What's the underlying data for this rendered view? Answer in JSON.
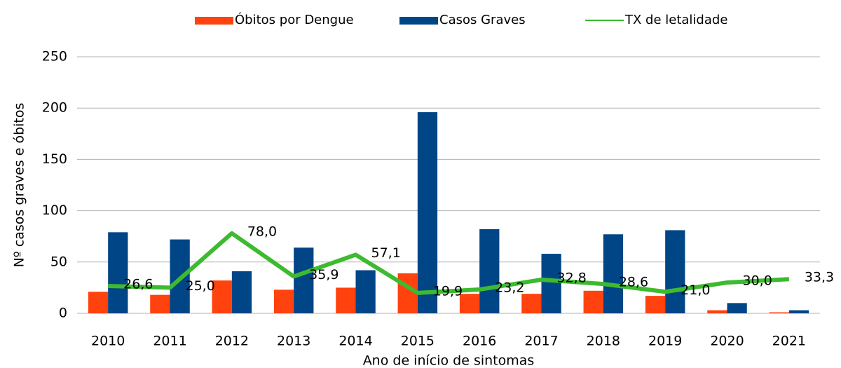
{
  "chart_data": {
    "type": "bar",
    "x_label": "Ano de início de sintomas",
    "y_label": "Nº casos graves e óbitos",
    "categories": [
      "2010",
      "2011",
      "2012",
      "2013",
      "2014",
      "2015",
      "2016",
      "2017",
      "2018",
      "2019",
      "2020",
      "2021"
    ],
    "series": [
      {
        "name": "Óbitos por Dengue",
        "type": "bar",
        "color": "#ff420e",
        "values": [
          21,
          18,
          32,
          23,
          25,
          39,
          19,
          19,
          22,
          17,
          3,
          1
        ]
      },
      {
        "name": "Casos Graves",
        "type": "bar",
        "color": "#004586",
        "values": [
          79,
          72,
          41,
          64,
          42,
          196,
          82,
          58,
          77,
          81,
          10,
          3
        ]
      },
      {
        "name": "TX de letalidade",
        "type": "line",
        "color": "#3dba2f",
        "values": [
          26.6,
          25.0,
          78.0,
          35.9,
          57.1,
          19.9,
          23.2,
          32.8,
          28.6,
          21.0,
          30.0,
          33.3
        ],
        "value_labels": [
          "26,6",
          "25,0",
          "78,0",
          "35,9",
          "57,1",
          "19,9",
          "23,2",
          "32,8",
          "28,6",
          "21,0",
          "30,0",
          "33,3"
        ]
      }
    ],
    "ylim": [
      0,
      250
    ],
    "yticks": [
      0,
      50,
      100,
      150,
      200,
      250
    ],
    "grid": true,
    "legend": "top"
  }
}
